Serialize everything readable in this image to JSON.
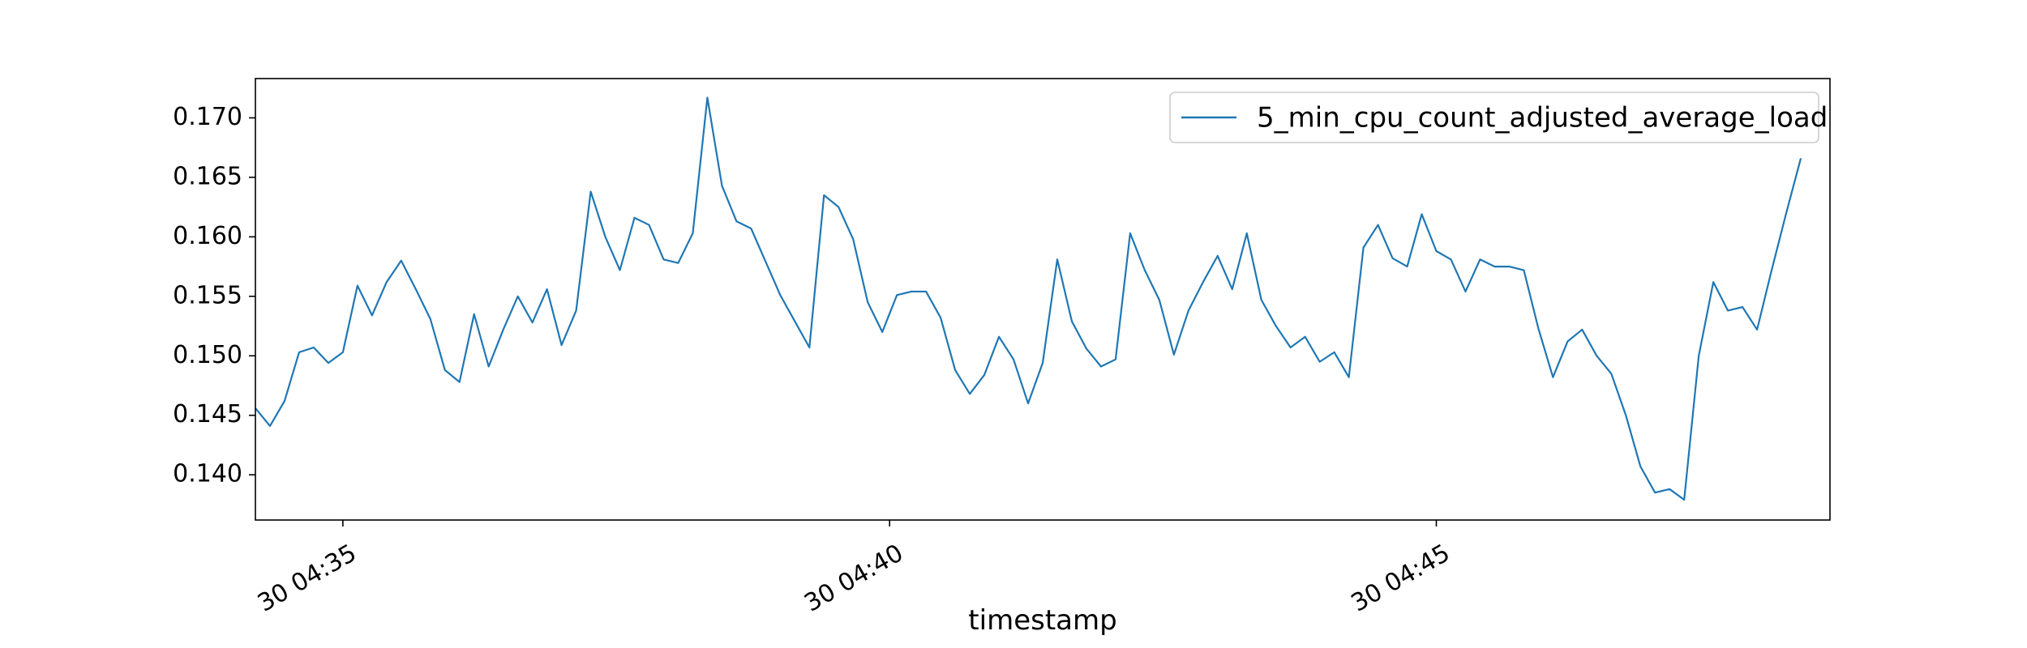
{
  "chart_data": {
    "type": "line",
    "title": "",
    "xlabel": "timestamp",
    "ylabel": "",
    "grid": false,
    "legend_position": "top-right",
    "x_ticks": [
      "30 04:35",
      "30 04:40",
      "30 04:45"
    ],
    "x_start": "30 04:34:12",
    "x_step_seconds": 8,
    "xlim": [
      "30 04:34:12",
      "30 04:48:36"
    ],
    "y_ticks": [
      "0.140",
      "0.145",
      "0.150",
      "0.155",
      "0.160",
      "0.165",
      "0.170"
    ],
    "ylim": [
      0.1362,
      0.1733
    ],
    "series": [
      {
        "name": "5_min_cpu_count_adjusted_average_load",
        "color": "#1f77b4",
        "values": [
          0.1456,
          0.1441,
          0.1462,
          0.1503,
          0.1507,
          0.1494,
          0.1503,
          0.1559,
          0.1534,
          0.1562,
          0.158,
          0.1556,
          0.1531,
          0.1488,
          0.1478,
          0.1535,
          0.1491,
          0.1522,
          0.155,
          0.1528,
          0.1556,
          0.1509,
          0.1538,
          0.1638,
          0.16,
          0.1572,
          0.1616,
          0.161,
          0.1581,
          0.1578,
          0.1603,
          0.1717,
          0.1643,
          0.1613,
          0.1607,
          0.1579,
          0.1551,
          0.1529,
          0.1507,
          0.1635,
          0.1625,
          0.1598,
          0.1545,
          0.152,
          0.1551,
          0.1554,
          0.1554,
          0.1532,
          0.1488,
          0.1468,
          0.1484,
          0.1516,
          0.1497,
          0.146,
          0.1494,
          0.1581,
          0.1529,
          0.1506,
          0.1491,
          0.1497,
          0.1603,
          0.1572,
          0.1547,
          0.1501,
          0.1538,
          0.1562,
          0.1584,
          0.1556,
          0.1603,
          0.1547,
          0.1525,
          0.1507,
          0.1516,
          0.1495,
          0.1503,
          0.1482,
          0.1591,
          0.161,
          0.1582,
          0.1575,
          0.1619,
          0.1588,
          0.1581,
          0.1554,
          0.1581,
          0.1575,
          0.1575,
          0.1572,
          0.1523,
          0.1482,
          0.1512,
          0.1522,
          0.15,
          0.1485,
          0.145,
          0.1407,
          0.1385,
          0.1388,
          0.1379,
          0.15,
          0.1562,
          0.1538,
          0.1541,
          0.1522,
          0.1572,
          0.162,
          0.1666
        ]
      }
    ]
  }
}
